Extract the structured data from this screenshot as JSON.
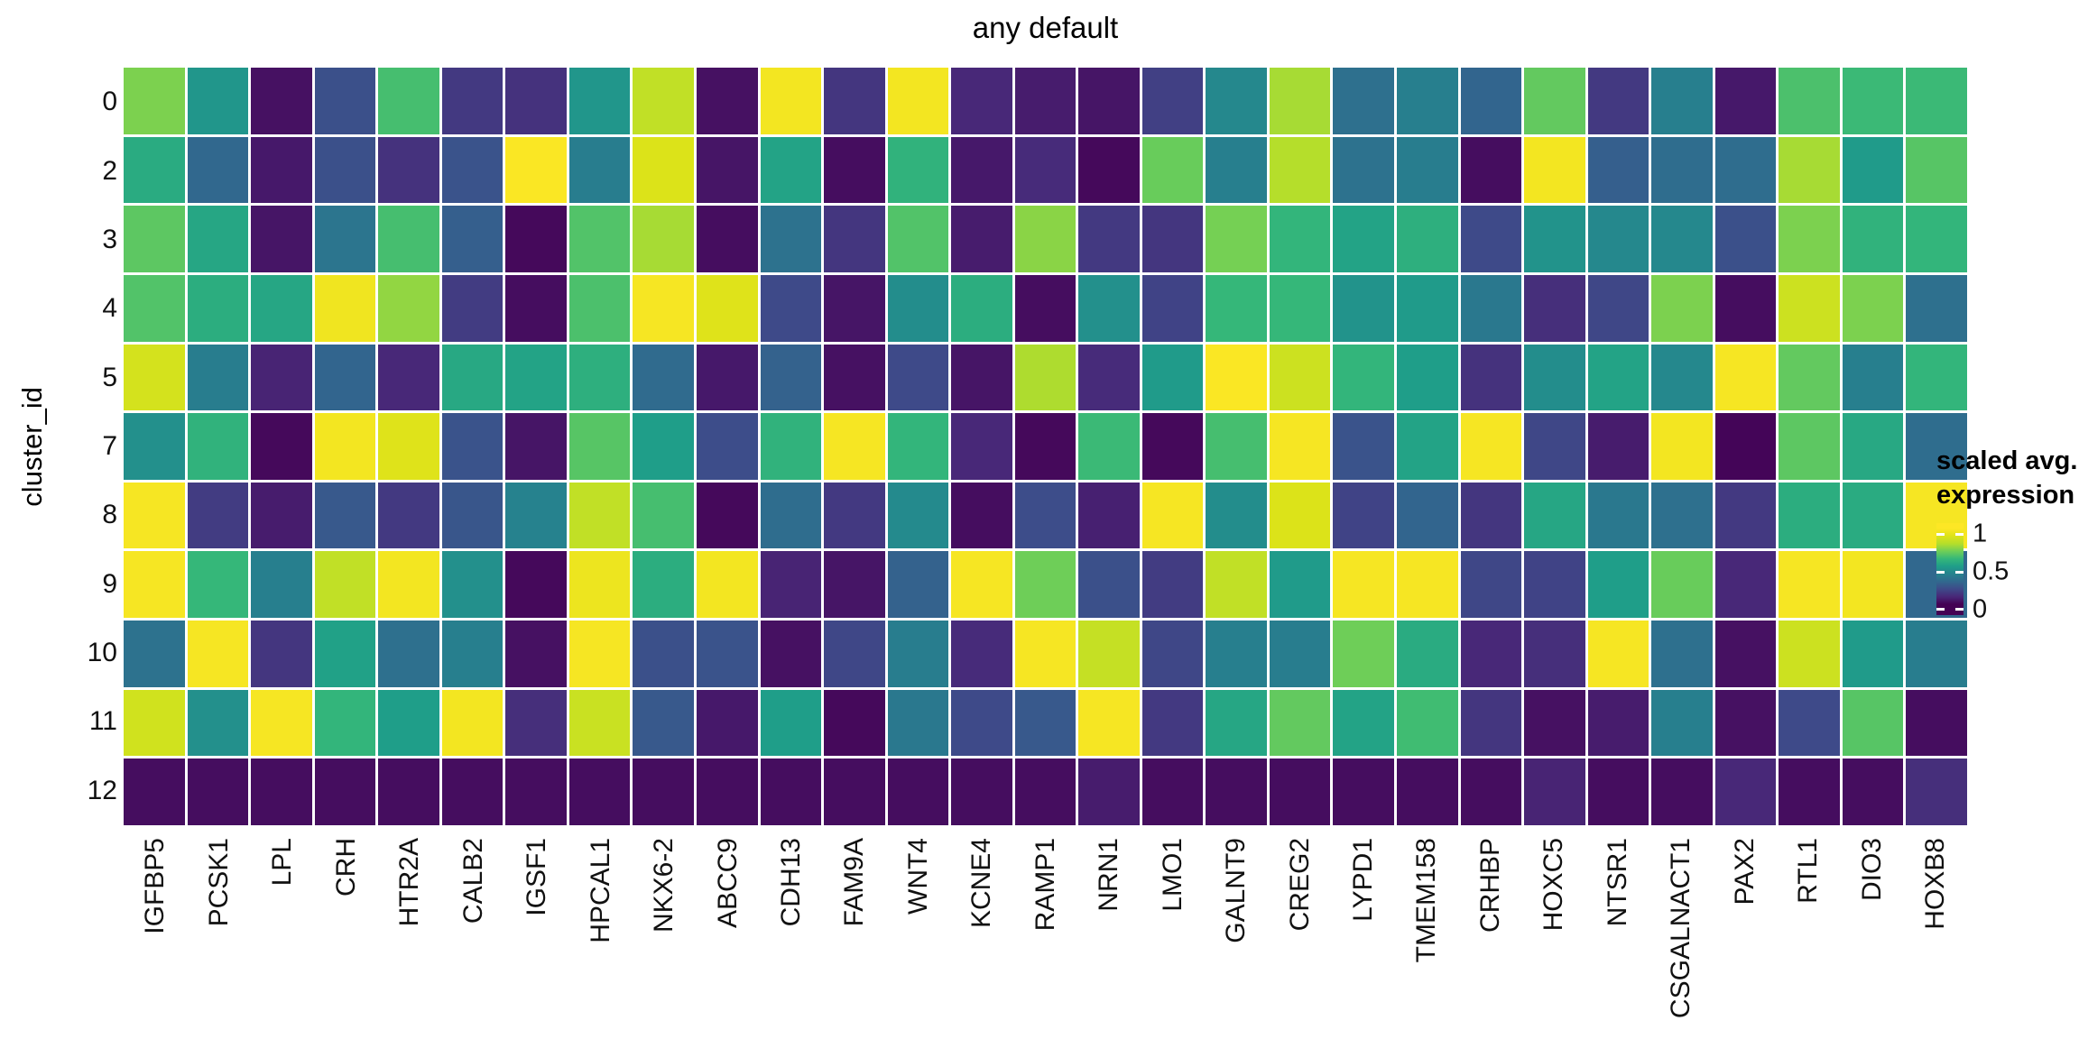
{
  "title": "any default",
  "y_axis": {
    "label": "cluster_id"
  },
  "legend": {
    "title_line1": "scaled avg.",
    "title_line2": "expression",
    "ticks": [
      {
        "label": "1",
        "value": 1.0
      },
      {
        "label": "0.5",
        "value": 0.5
      },
      {
        "label": "0",
        "value": 0.0
      }
    ]
  },
  "colors": {
    "background": "#ffffff",
    "text": "#000000",
    "tile_border": "#ffffff",
    "viridis_stops": [
      "#440154",
      "#482878",
      "#3e4a89",
      "#31688e",
      "#26828e",
      "#1f9e89",
      "#35b779",
      "#6ece58",
      "#b5de2b",
      "#dce319",
      "#fde725"
    ]
  },
  "chart_data": {
    "type": "heatmap",
    "title": "any default",
    "xlabel": "",
    "ylabel": "cluster_id",
    "legend_title": "scaled avg. expression",
    "palette": "viridis",
    "value_range": [
      0,
      1
    ],
    "legend_tick_values": [
      1,
      0.5,
      0
    ],
    "rows": [
      "0",
      "2",
      "3",
      "4",
      "5",
      "7",
      "8",
      "9",
      "10",
      "11",
      "12"
    ],
    "columns": [
      "IGFBP5",
      "PCSK1",
      "LPL",
      "CRH",
      "HTR2A",
      "CALB2",
      "IGSF1",
      "HPCAL1",
      "NKX6-2",
      "ABCC9",
      "CDH13",
      "FAM9A",
      "WNT4",
      "KCNE4",
      "RAMP1",
      "NRN1",
      "LMO1",
      "GALNT9",
      "CREG2",
      "LYPD1",
      "TMEM158",
      "CRHBP",
      "HOXC5",
      "NTSR1",
      "CSGALNACT1",
      "PAX2",
      "RTL1",
      "DIO3",
      "HOXB8"
    ],
    "values": [
      [
        0.72,
        0.47,
        0.04,
        0.22,
        0.63,
        0.15,
        0.13,
        0.47,
        0.83,
        0.04,
        0.97,
        0.14,
        0.97,
        0.1,
        0.07,
        0.05,
        0.17,
        0.42,
        0.78,
        0.33,
        0.39,
        0.29,
        0.68,
        0.15,
        0.39,
        0.06,
        0.64,
        0.61,
        0.61
      ],
      [
        0.55,
        0.3,
        0.06,
        0.22,
        0.13,
        0.23,
        0.99,
        0.38,
        0.9,
        0.05,
        0.52,
        0.03,
        0.58,
        0.06,
        0.11,
        0.02,
        0.69,
        0.39,
        0.8,
        0.34,
        0.38,
        0.03,
        0.97,
        0.27,
        0.32,
        0.32,
        0.78,
        0.49,
        0.66
      ],
      [
        0.67,
        0.53,
        0.05,
        0.35,
        0.63,
        0.27,
        0.02,
        0.65,
        0.78,
        0.03,
        0.34,
        0.14,
        0.65,
        0.07,
        0.74,
        0.15,
        0.14,
        0.71,
        0.59,
        0.52,
        0.57,
        0.2,
        0.46,
        0.42,
        0.42,
        0.22,
        0.72,
        0.58,
        0.59
      ],
      [
        0.65,
        0.56,
        0.53,
        0.96,
        0.75,
        0.16,
        0.03,
        0.64,
        0.98,
        0.91,
        0.2,
        0.05,
        0.44,
        0.56,
        0.03,
        0.45,
        0.18,
        0.6,
        0.6,
        0.46,
        0.49,
        0.36,
        0.12,
        0.19,
        0.72,
        0.03,
        0.86,
        0.72,
        0.33
      ],
      [
        0.88,
        0.38,
        0.09,
        0.29,
        0.1,
        0.54,
        0.52,
        0.57,
        0.31,
        0.06,
        0.28,
        0.04,
        0.2,
        0.05,
        0.79,
        0.11,
        0.49,
        0.99,
        0.86,
        0.59,
        0.5,
        0.13,
        0.44,
        0.52,
        0.42,
        0.98,
        0.68,
        0.39,
        0.59
      ],
      [
        0.45,
        0.58,
        0.02,
        0.97,
        0.91,
        0.23,
        0.05,
        0.66,
        0.5,
        0.21,
        0.58,
        0.98,
        0.59,
        0.1,
        0.02,
        0.61,
        0.02,
        0.63,
        0.98,
        0.23,
        0.52,
        0.98,
        0.19,
        0.07,
        0.97,
        0.01,
        0.67,
        0.54,
        0.32
      ],
      [
        0.98,
        0.16,
        0.07,
        0.25,
        0.15,
        0.24,
        0.4,
        0.83,
        0.63,
        0.02,
        0.32,
        0.15,
        0.43,
        0.03,
        0.21,
        0.08,
        0.98,
        0.44,
        0.9,
        0.18,
        0.29,
        0.14,
        0.53,
        0.36,
        0.33,
        0.15,
        0.56,
        0.55,
        0.98
      ],
      [
        0.98,
        0.6,
        0.39,
        0.83,
        0.97,
        0.45,
        0.02,
        0.95,
        0.56,
        0.97,
        0.09,
        0.05,
        0.28,
        0.98,
        0.7,
        0.22,
        0.16,
        0.83,
        0.49,
        0.98,
        0.98,
        0.19,
        0.18,
        0.5,
        0.69,
        0.1,
        0.98,
        0.97,
        0.3
      ],
      [
        0.34,
        0.98,
        0.14,
        0.51,
        0.33,
        0.39,
        0.04,
        0.98,
        0.22,
        0.23,
        0.04,
        0.19,
        0.38,
        0.11,
        0.98,
        0.84,
        0.19,
        0.39,
        0.38,
        0.7,
        0.55,
        0.1,
        0.12,
        0.98,
        0.33,
        0.04,
        0.86,
        0.49,
        0.38
      ],
      [
        0.87,
        0.45,
        0.98,
        0.59,
        0.5,
        0.97,
        0.12,
        0.85,
        0.25,
        0.06,
        0.5,
        0.02,
        0.36,
        0.2,
        0.25,
        0.98,
        0.15,
        0.53,
        0.68,
        0.52,
        0.62,
        0.14,
        0.04,
        0.07,
        0.39,
        0.04,
        0.2,
        0.66,
        0.03
      ],
      [
        0.03,
        0.03,
        0.03,
        0.03,
        0.03,
        0.03,
        0.03,
        0.03,
        0.03,
        0.03,
        0.03,
        0.03,
        0.03,
        0.03,
        0.03,
        0.07,
        0.03,
        0.03,
        0.03,
        0.03,
        0.03,
        0.03,
        0.09,
        0.03,
        0.03,
        0.1,
        0.03,
        0.03,
        0.12
      ]
    ]
  }
}
